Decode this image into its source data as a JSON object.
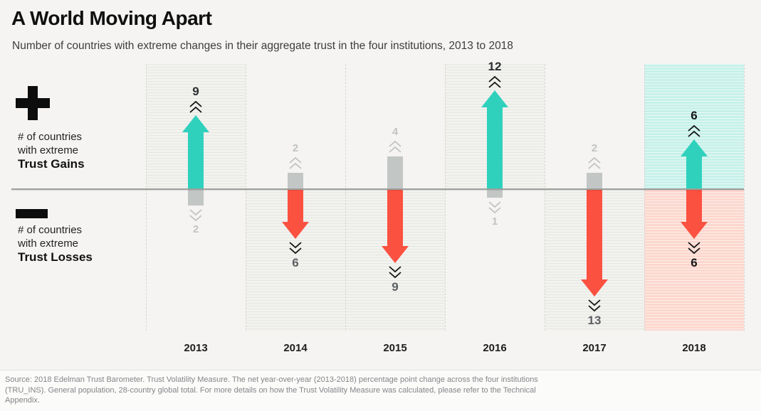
{
  "header": {
    "title": "A World Moving Apart",
    "subtitle": "Number of countries with extreme changes in their aggregate trust in the four institutions, 2013 to 2018"
  },
  "legend": {
    "gains": {
      "icon": "plus-icon",
      "symbol": "+",
      "line1": "# of countries",
      "line2": "with extreme",
      "line3": "Trust Gains"
    },
    "losses": {
      "icon": "minus-icon",
      "symbol": "−",
      "line1": "# of countries",
      "line2": "with extreme",
      "line3": "Trust Losses"
    }
  },
  "chart_data": {
    "type": "bar",
    "title": "A World Moving Apart",
    "subtitle": "Number of countries with extreme changes in their aggregate trust in the four institutions, 2013 to 2018",
    "categories": [
      "2013",
      "2014",
      "2015",
      "2016",
      "2017",
      "2018"
    ],
    "series": [
      {
        "name": "Trust Gains",
        "direction": "up",
        "values": [
          9,
          2,
          4,
          12,
          2,
          6
        ]
      },
      {
        "name": "Trust Losses",
        "direction": "down",
        "values": [
          2,
          6,
          9,
          1,
          13,
          6
        ]
      }
    ],
    "emphasis": [
      "gains",
      "losses",
      "losses",
      "gains",
      "losses",
      "both"
    ],
    "highlighted_category": "2018",
    "baseline_value": 0,
    "ylim": [
      -13,
      12
    ],
    "grid": "striped-bands",
    "legend_position": "left"
  },
  "colors": {
    "gain_arrow": "#2fd1bd",
    "loss_arrow": "#fb5140",
    "neutral_stub": "#c2c6c4",
    "gain_band": "#c6f1e9",
    "loss_band": "#fcd7ce",
    "gray_band": "#f2f2ef",
    "majority_gain_number": "#2b2e30",
    "majority_loss_number": "#5c6062",
    "highlight_number": "#161616",
    "minority_number": "#c2c4c2",
    "baseline": "#9aa09c"
  },
  "footer": {
    "source": "Source: 2018 Edelman Trust Barometer. Trust Volatility Measure. The net year-over-year (2013-2018) percentage point change across the four institutions (TRU_INS). General population, 28-country global total. For more details on how the Trust Volatility Measure was calculated, please refer to the Technical Appendix."
  }
}
